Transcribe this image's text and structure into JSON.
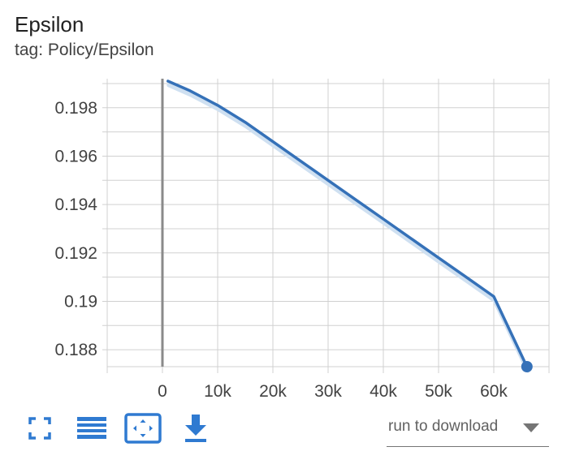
{
  "card": {
    "title": "Epsilon",
    "tag_line": "tag: Policy/Epsilon"
  },
  "toolbar": {
    "buttons": [
      {
        "icon": "fullscreen-icon",
        "name": "fullscreen-button"
      },
      {
        "icon": "list-lines-icon",
        "name": "toggle-log-scale-button"
      },
      {
        "icon": "fit-domain-icon",
        "name": "fit-domain-button"
      },
      {
        "icon": "download-icon",
        "name": "download-button"
      }
    ],
    "dropdown_label": "run to download"
  },
  "colors": {
    "line": "#3571b8",
    "smoothed_shadow": "#cfe0f1",
    "grid": "#d0d0d0",
    "axis_zero": "#8a8a8a",
    "icon_blue": "#2f7ad1"
  },
  "chart_data": {
    "type": "line",
    "title": "Epsilon",
    "subtitle": "tag: Policy/Epsilon",
    "xlabel": "",
    "ylabel": "",
    "x_ticks": [
      "0",
      "10k",
      "20k",
      "30k",
      "40k",
      "50k",
      "60k"
    ],
    "y_ticks": [
      "0.188",
      "0.19",
      "0.192",
      "0.194",
      "0.196",
      "0.198"
    ],
    "xlim": [
      -10000,
      70000
    ],
    "ylim": [
      0.1873,
      0.1992
    ],
    "grid": true,
    "series": [
      {
        "x": [
          1000,
          5000,
          10000,
          15000,
          20000,
          25000,
          30000,
          35000,
          40000,
          45000,
          50000,
          55000,
          60000,
          66000
        ],
        "y": [
          0.1991,
          0.1987,
          0.1981,
          0.1974,
          0.1966,
          0.1958,
          0.195,
          0.1942,
          0.1934,
          0.1926,
          0.1918,
          0.191,
          0.1902,
          0.1873
        ]
      }
    ],
    "last_point": {
      "x": 66000,
      "y": 0.1873
    }
  }
}
